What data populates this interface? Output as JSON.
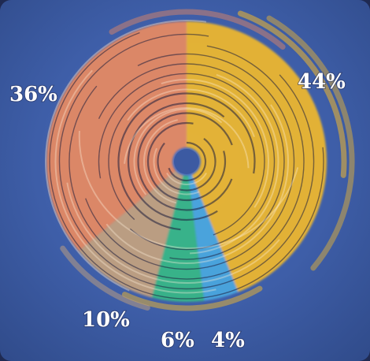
{
  "chart_data": {
    "type": "pie",
    "style": "swirl-donut",
    "slices": [
      {
        "label": "44%",
        "value": 44,
        "color": "#f0b82e"
      },
      {
        "label": "4%",
        "value": 4,
        "color": "#4aa8e0"
      },
      {
        "label": "6%",
        "value": 6,
        "color": "#36b886"
      },
      {
        "label": "10%",
        "value": 10,
        "color": "#c4a27e"
      },
      {
        "label": "36%",
        "value": 36,
        "color": "#e88a62"
      }
    ],
    "start_angle_deg": 0,
    "direction": "clockwise",
    "background_color": "#3e5ea8"
  }
}
